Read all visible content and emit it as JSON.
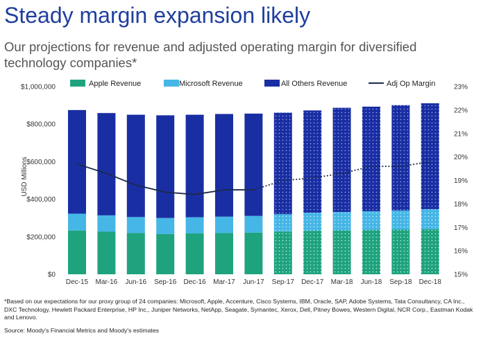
{
  "title": "Steady margin expansion likely",
  "subtitle": "Our projections for revenue and adjusted operating margin for diversified technology companies*",
  "footnote": "*Based on our expectations for our proxy group of 24 companies: Microsoft, Apple, Accenture, Cisco Systems, IBM, Oracle, SAP, Adobe Systems, Tata Consultancy, CA Inc., DXC Technology, Hewlett Packard Enterprise, HP Inc., Juniper Networks, NetApp, Seagate, Symantec, Xerox, Dell, Pitney Bowes, Western Digital, NCR Corp., Eastman Kodak and Lenovo.",
  "source": "Source: Moody's Financial Metrics and Moody's estimates",
  "colors": {
    "apple": "#1fa37f",
    "microsoft": "#45b6e6",
    "others": "#1a2ea3",
    "margin": "#1c2a4a"
  },
  "chart_data": {
    "type": "bar",
    "stacked": true,
    "categories": [
      "Dec-15",
      "Mar-16",
      "Jun-16",
      "Sep-16",
      "Dec-16",
      "Mar-17",
      "Jun-17",
      "Sep-17",
      "Dec-17",
      "Mar-18",
      "Jun-18",
      "Sep-18",
      "Dec-18"
    ],
    "first_projected_index": 7,
    "ylabel": "USD Millions",
    "ylim": [
      0,
      1000000
    ],
    "yticks": [
      "$0",
      "$200,000",
      "$400,000",
      "$600,000",
      "$800,000",
      "$1,000,000"
    ],
    "y2lim": [
      15,
      23
    ],
    "y2ticks": [
      "15%",
      "16%",
      "17%",
      "18%",
      "19%",
      "20%",
      "21%",
      "22%",
      "23%"
    ],
    "series": [
      {
        "name": "Apple Revenue",
        "values": [
          233000,
          227000,
          220000,
          215000,
          218000,
          220000,
          222000,
          228000,
          232000,
          234000,
          236000,
          238000,
          240000
        ]
      },
      {
        "name": "Microsoft Revenue",
        "values": [
          90000,
          87000,
          85000,
          85000,
          86000,
          87000,
          89000,
          92000,
          96000,
          98000,
          100000,
          102000,
          107000
        ]
      },
      {
        "name": "All Others Revenue",
        "values": [
          552000,
          545000,
          545000,
          547000,
          546000,
          547000,
          545000,
          541000,
          545000,
          555000,
          557000,
          561000,
          564000
        ]
      }
    ],
    "line": {
      "name": "Adj Op Margin",
      "values": [
        19.7,
        19.3,
        18.8,
        18.5,
        18.4,
        18.6,
        18.6,
        19.0,
        19.1,
        19.3,
        19.6,
        19.6,
        19.8
      ]
    },
    "legend_position": "top"
  }
}
